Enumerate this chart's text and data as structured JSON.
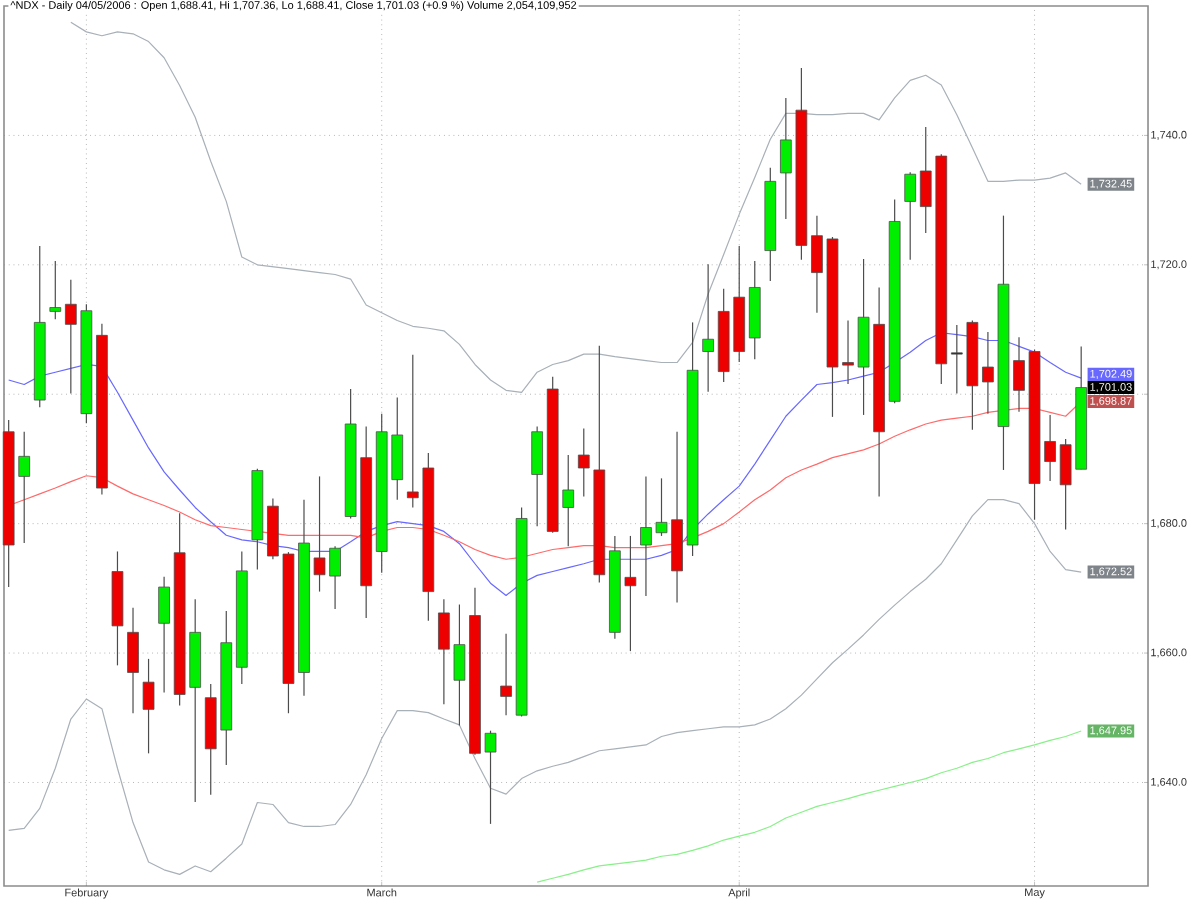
{
  "chart_data": {
    "type": "candlestick",
    "title": "^NDX - Daily 04/05/2006 : Open 1,688.41, Hi 1,707.36, Lo 1,688.41, Close 1,701.03 (+0.9 %) Volume 2,054,109,952",
    "categories": [
      null,
      null,
      null,
      null,
      null,
      "February",
      null,
      null,
      null,
      null,
      null,
      null,
      null,
      null,
      null,
      null,
      null,
      null,
      null,
      null,
      null,
      null,
      null,
      null,
      "March",
      null,
      null,
      null,
      null,
      null,
      null,
      null,
      null,
      null,
      null,
      null,
      null,
      null,
      null,
      null,
      null,
      null,
      null,
      null,
      null,
      null,
      null,
      "April",
      null,
      null,
      null,
      null,
      null,
      null,
      null,
      null,
      null,
      null,
      null,
      null,
      null,
      null,
      null,
      null,
      null,
      null,
      "May",
      null,
      null,
      null
    ],
    "ohlc": [
      [
        1694.2,
        1696.0,
        1670.2,
        1676.7
      ],
      [
        1687.3,
        1694.2,
        1677.0,
        1690.4
      ],
      [
        1699.1,
        1722.9,
        1698.0,
        1711.1
      ],
      [
        1712.8,
        1720.6,
        1711.6,
        1713.4
      ],
      [
        1713.9,
        1717.7,
        1700.1,
        1710.8
      ],
      [
        1697.0,
        1713.9,
        1695.5,
        1712.9
      ],
      [
        1709.1,
        1710.9,
        1684.5,
        1685.5
      ],
      [
        1672.6,
        1675.7,
        1658.1,
        1664.2
      ],
      [
        1663.2,
        1667.0,
        1650.7,
        1657.0
      ],
      [
        1655.5,
        1659.1,
        1644.5,
        1651.3
      ],
      [
        1664.6,
        1671.8,
        1653.9,
        1670.2
      ],
      [
        1675.5,
        1681.6,
        1651.9,
        1653.6
      ],
      [
        1654.7,
        1668.3,
        1637.0,
        1663.2
      ],
      [
        1653.1,
        1655.2,
        1638.1,
        1645.2
      ],
      [
        1648.1,
        1666.5,
        1642.7,
        1661.6
      ],
      [
        1657.8,
        1675.7,
        1655.2,
        1672.7
      ],
      [
        1677.5,
        1688.5,
        1672.9,
        1688.2
      ],
      [
        1682.7,
        1683.9,
        1674.5,
        1675.0
      ],
      [
        1675.3,
        1675.6,
        1650.7,
        1655.3
      ],
      [
        1657.0,
        1683.7,
        1653.4,
        1677.0
      ],
      [
        1674.7,
        1687.3,
        1669.5,
        1672.1
      ],
      [
        1671.9,
        1676.5,
        1666.8,
        1676.2
      ],
      [
        1681.1,
        1700.8,
        1680.8,
        1695.4
      ],
      [
        1690.2,
        1695.0,
        1665.4,
        1670.4
      ],
      [
        1675.7,
        1697.0,
        1672.4,
        1694.2
      ],
      [
        1686.8,
        1699.5,
        1683.7,
        1693.7
      ],
      [
        1684.9,
        1706.1,
        1682.5,
        1684.0
      ],
      [
        1688.6,
        1690.9,
        1665.0,
        1669.5
      ],
      [
        1666.2,
        1668.3,
        1652.1,
        1660.6
      ],
      [
        1655.8,
        1667.5,
        1648.8,
        1661.3
      ],
      [
        1665.8,
        1670.1,
        1644.3,
        1644.5
      ],
      [
        1644.7,
        1648.0,
        1633.6,
        1647.6
      ],
      [
        1654.9,
        1663.0,
        1650.4,
        1653.3
      ],
      [
        1650.4,
        1682.5,
        1650.2,
        1680.8
      ],
      [
        1687.6,
        1695.0,
        1679.6,
        1694.2
      ],
      [
        1700.8,
        1702.7,
        1678.6,
        1678.8
      ],
      [
        1682.5,
        1690.6,
        1676.5,
        1685.2
      ],
      [
        1690.6,
        1694.7,
        1684.2,
        1688.6
      ],
      [
        1688.3,
        1707.5,
        1670.9,
        1672.1
      ],
      [
        1663.2,
        1678.1,
        1662.2,
        1675.8
      ],
      [
        1671.7,
        1678.1,
        1660.3,
        1670.4
      ],
      [
        1676.7,
        1687.3,
        1668.8,
        1679.4
      ],
      [
        1678.6,
        1687.0,
        1678.1,
        1680.2
      ],
      [
        1680.6,
        1694.2,
        1667.8,
        1672.7
      ],
      [
        1676.7,
        1711.1,
        1675.0,
        1703.7
      ],
      [
        1706.6,
        1720.1,
        1700.4,
        1708.5
      ],
      [
        1712.8,
        1716.3,
        1701.9,
        1703.5
      ],
      [
        1715.0,
        1722.9,
        1705.0,
        1706.6
      ],
      [
        1708.7,
        1720.6,
        1705.4,
        1716.5
      ],
      [
        1722.2,
        1735.0,
        1717.5,
        1732.9
      ],
      [
        1734.2,
        1745.8,
        1727.1,
        1739.3
      ],
      [
        1743.9,
        1750.4,
        1720.8,
        1723.0
      ],
      [
        1724.5,
        1727.6,
        1712.6,
        1718.8
      ],
      [
        1724.0,
        1724.3,
        1696.5,
        1704.2
      ],
      [
        1704.9,
        1711.4,
        1701.6,
        1704.5
      ],
      [
        1704.2,
        1720.9,
        1696.8,
        1711.9
      ],
      [
        1710.8,
        1716.5,
        1684.2,
        1694.2
      ],
      [
        1698.9,
        1730.1,
        1698.6,
        1726.7
      ],
      [
        1729.8,
        1734.3,
        1720.8,
        1734.0
      ],
      [
        1734.5,
        1741.3,
        1724.9,
        1729.0
      ],
      [
        1736.8,
        1737.1,
        1701.6,
        1704.7
      ],
      [
        1706.4,
        1710.7,
        1700.1,
        1706.2
      ],
      [
        1711.1,
        1711.4,
        1694.5,
        1701.3
      ],
      [
        1704.2,
        1709.6,
        1697.0,
        1701.9
      ],
      [
        1695.0,
        1727.6,
        1688.3,
        1717.0
      ],
      [
        1705.2,
        1708.8,
        1697.3,
        1700.6
      ],
      [
        1706.6,
        1706.9,
        1680.6,
        1686.2
      ],
      [
        1692.7,
        1696.8,
        1686.6,
        1689.6
      ],
      [
        1692.2,
        1693.1,
        1679.1,
        1686.0
      ],
      [
        1688.41,
        1707.36,
        1688.41,
        1701.03
      ]
    ],
    "value_labels": [
      null,
      null,
      null,
      null,
      null,
      null,
      null,
      null,
      null,
      null,
      null,
      null,
      null,
      null,
      null,
      null,
      null,
      null,
      null,
      null,
      null,
      null,
      null,
      null,
      null,
      null,
      null,
      null,
      null,
      null,
      null,
      null,
      null,
      null,
      null,
      null,
      null,
      null,
      null,
      null,
      null,
      null,
      null,
      null,
      null,
      null,
      null,
      null,
      null,
      null,
      null,
      null,
      null,
      null,
      null,
      null,
      null,
      null,
      null,
      null,
      null,
      null,
      null,
      null,
      null,
      null,
      null,
      null,
      null,
      "1,701.03"
    ],
    "colors": [
      "#ee0000",
      "#00ee00",
      "#00ee00",
      "#00ee00",
      "#ee0000",
      "#00ee00",
      "#ee0000",
      "#ee0000",
      "#ee0000",
      "#ee0000",
      "#00ee00",
      "#ee0000",
      "#00ee00",
      "#ee0000",
      "#00ee00",
      "#00ee00",
      "#00ee00",
      "#ee0000",
      "#ee0000",
      "#00ee00",
      "#ee0000",
      "#00ee00",
      "#00ee00",
      "#ee0000",
      "#00ee00",
      "#00ee00",
      "#ee0000",
      "#ee0000",
      "#ee0000",
      "#00ee00",
      "#ee0000",
      "#00ee00",
      "#ee0000",
      "#00ee00",
      "#00ee00",
      "#ee0000",
      "#00ee00",
      "#ee0000",
      "#ee0000",
      "#00ee00",
      "#ee0000",
      "#00ee00",
      "#00ee00",
      "#ee0000",
      "#00ee00",
      "#00ee00",
      "#ee0000",
      "#ee0000",
      "#00ee00",
      "#00ee00",
      "#00ee00",
      "#ee0000",
      "#ee0000",
      "#ee0000",
      "#ee0000",
      "#00ee00",
      "#ee0000",
      "#00ee00",
      "#00ee00",
      "#ee0000",
      "#ee0000",
      "#202020",
      "#ee0000",
      "#ee0000",
      "#00ee00",
      "#ee0000",
      "#ee0000",
      "#ee0000",
      "#ee0000",
      "#00ee00"
    ],
    "series": [
      {
        "type": "line",
        "color": "#a8b0b8",
        "values": [
          null,
          null,
          null,
          null,
          1757.5,
          1756.0,
          1755.4,
          1756.0,
          1755.7,
          1754.5,
          1752.0,
          1747.7,
          1742.8,
          1736.0,
          1729.8,
          1721.2,
          1720.0,
          1719.7,
          1719.4,
          1719.1,
          1718.8,
          1718.5,
          1717.8,
          1713.8,
          1712.6,
          1711.4,
          1710.5,
          1710.2,
          1709.8,
          1707.7,
          1704.6,
          1702.2,
          1700.6,
          1700.3,
          1703.4,
          1704.6,
          1705.2,
          1706.2,
          1706.2,
          1705.8,
          1705.5,
          1705.2,
          1704.9,
          1704.9,
          1708.0,
          1715.5,
          1721.6,
          1727.8,
          1733.5,
          1739.4,
          1743.4,
          1743.4,
          1743.2,
          1743.2,
          1743.4,
          1743.4,
          1742.4,
          1745.8,
          1748.5,
          1749.3,
          1747.8,
          1743.2,
          1738.1,
          1732.9,
          1732.9,
          1733.1,
          1733.1,
          1733.4,
          1734.2,
          1732.45
        ],
        "value_labels": [
          null,
          null,
          null,
          null,
          null,
          null,
          null,
          null,
          null,
          null,
          null,
          null,
          null,
          null,
          null,
          null,
          null,
          null,
          null,
          null,
          null,
          null,
          null,
          null,
          null,
          null,
          null,
          null,
          null,
          null,
          null,
          null,
          null,
          null,
          null,
          null,
          null,
          null,
          null,
          null,
          null,
          null,
          null,
          null,
          null,
          null,
          null,
          null,
          null,
          null,
          null,
          null,
          null,
          null,
          null,
          null,
          null,
          null,
          null,
          null,
          null,
          null,
          null,
          null,
          null,
          null,
          null,
          null,
          null,
          "1,732.45"
        ]
      },
      {
        "type": "line",
        "color": "#a8b0b8",
        "values": [
          1632.6,
          1632.9,
          1636.0,
          1642.2,
          1649.8,
          1652.9,
          1651.4,
          1642.2,
          1633.8,
          1627.7,
          1626.5,
          1625.8,
          1627.1,
          1626.2,
          1628.3,
          1630.5,
          1636.9,
          1636.6,
          1633.8,
          1633.2,
          1633.2,
          1633.5,
          1636.6,
          1641.2,
          1646.8,
          1651.1,
          1651.1,
          1650.8,
          1649.8,
          1648.9,
          1643.7,
          1639.1,
          1638.2,
          1640.6,
          1641.8,
          1642.5,
          1643.1,
          1644.0,
          1644.9,
          1645.2,
          1645.5,
          1645.8,
          1647.1,
          1647.7,
          1648.0,
          1648.3,
          1648.6,
          1648.6,
          1648.9,
          1649.8,
          1651.4,
          1653.5,
          1656.0,
          1658.5,
          1660.6,
          1662.8,
          1665.2,
          1667.4,
          1669.5,
          1671.4,
          1673.8,
          1677.5,
          1681.2,
          1683.7,
          1683.7,
          1683.1,
          1680.0,
          1675.7,
          1672.9,
          1672.52
        ],
        "value_labels": [
          null,
          null,
          null,
          null,
          null,
          null,
          null,
          null,
          null,
          null,
          null,
          null,
          null,
          null,
          null,
          null,
          null,
          null,
          null,
          null,
          null,
          null,
          null,
          null,
          null,
          null,
          null,
          null,
          null,
          null,
          null,
          null,
          null,
          null,
          null,
          null,
          null,
          null,
          null,
          null,
          null,
          null,
          null,
          null,
          null,
          null,
          null,
          null,
          null,
          null,
          null,
          null,
          null,
          null,
          null,
          null,
          null,
          null,
          null,
          null,
          null,
          null,
          null,
          null,
          null,
          null,
          null,
          null,
          null,
          "1,672.52"
        ]
      },
      {
        "type": "line",
        "color": "#6868ff",
        "values": [
          1702.2,
          1701.5,
          1702.8,
          1703.4,
          1704.0,
          1704.6,
          1704.3,
          1700.3,
          1696.0,
          1691.7,
          1688.0,
          1685.2,
          1682.5,
          1680.3,
          1678.2,
          1677.5,
          1677.2,
          1676.6,
          1676.3,
          1675.7,
          1675.7,
          1675.7,
          1677.2,
          1678.8,
          1679.7,
          1680.3,
          1680.0,
          1679.7,
          1678.8,
          1676.9,
          1673.8,
          1670.8,
          1668.9,
          1670.8,
          1672.0,
          1672.6,
          1673.2,
          1673.8,
          1674.5,
          1674.5,
          1674.5,
          1674.5,
          1675.1,
          1676.0,
          1679.1,
          1681.5,
          1683.7,
          1685.8,
          1689.2,
          1692.9,
          1696.6,
          1699.1,
          1701.5,
          1701.8,
          1702.2,
          1702.8,
          1703.4,
          1704.9,
          1706.5,
          1708.3,
          1709.5,
          1709.2,
          1708.9,
          1708.3,
          1708.3,
          1707.4,
          1706.5,
          1704.9,
          1703.4,
          1702.49
        ],
        "value_labels": [
          null,
          null,
          null,
          null,
          null,
          null,
          null,
          null,
          null,
          null,
          null,
          null,
          null,
          null,
          null,
          null,
          null,
          null,
          null,
          null,
          null,
          null,
          null,
          null,
          null,
          null,
          null,
          null,
          null,
          null,
          null,
          null,
          null,
          null,
          null,
          null,
          null,
          null,
          null,
          null,
          null,
          null,
          null,
          null,
          null,
          null,
          null,
          null,
          null,
          null,
          null,
          null,
          null,
          null,
          null,
          null,
          null,
          null,
          null,
          null,
          null,
          null,
          null,
          null,
          null,
          null,
          null,
          null,
          null,
          "1,702.49"
        ]
      },
      {
        "type": "line",
        "color": "#ff6a6a",
        "values": [
          1682.8,
          1683.7,
          1684.6,
          1685.5,
          1686.5,
          1687.4,
          1687.1,
          1685.8,
          1684.6,
          1683.7,
          1682.8,
          1681.8,
          1680.6,
          1679.7,
          1679.4,
          1679.1,
          1678.8,
          1678.5,
          1678.2,
          1678.2,
          1678.2,
          1678.2,
          1678.2,
          1677.8,
          1678.8,
          1679.4,
          1679.4,
          1679.1,
          1678.2,
          1677.2,
          1676.0,
          1675.1,
          1674.5,
          1674.8,
          1675.4,
          1676.0,
          1676.3,
          1676.6,
          1676.6,
          1676.3,
          1676.3,
          1676.3,
          1676.6,
          1676.9,
          1677.8,
          1678.8,
          1680.0,
          1681.8,
          1683.7,
          1685.2,
          1687.1,
          1688.3,
          1689.2,
          1690.2,
          1690.8,
          1691.4,
          1692.3,
          1693.5,
          1694.5,
          1695.4,
          1696.0,
          1696.3,
          1696.6,
          1697.2,
          1697.5,
          1697.8,
          1697.8,
          1697.2,
          1696.6,
          1698.87
        ],
        "value_labels": [
          null,
          null,
          null,
          null,
          null,
          null,
          null,
          null,
          null,
          null,
          null,
          null,
          null,
          null,
          null,
          null,
          null,
          null,
          null,
          null,
          null,
          null,
          null,
          null,
          null,
          null,
          null,
          null,
          null,
          null,
          null,
          null,
          null,
          null,
          null,
          null,
          null,
          null,
          null,
          null,
          null,
          null,
          null,
          null,
          null,
          null,
          null,
          null,
          null,
          null,
          null,
          null,
          null,
          null,
          null,
          null,
          null,
          null,
          null,
          null,
          null,
          null,
          null,
          null,
          null,
          null,
          null,
          null,
          null,
          "1,698.87"
        ]
      },
      {
        "type": "line",
        "color": "#88f088",
        "values": [
          null,
          null,
          null,
          null,
          null,
          null,
          null,
          null,
          null,
          null,
          null,
          null,
          null,
          null,
          null,
          null,
          null,
          null,
          null,
          null,
          null,
          null,
          null,
          null,
          null,
          null,
          null,
          null,
          null,
          null,
          null,
          null,
          null,
          null,
          1624.6,
          1625.2,
          1625.8,
          1626.5,
          1627.1,
          1627.4,
          1627.7,
          1628.0,
          1628.6,
          1628.9,
          1629.5,
          1630.2,
          1631.1,
          1631.7,
          1632.3,
          1633.2,
          1634.5,
          1635.4,
          1636.3,
          1636.9,
          1637.5,
          1638.2,
          1638.8,
          1639.4,
          1640.0,
          1640.6,
          1641.5,
          1642.2,
          1643.1,
          1643.7,
          1644.6,
          1645.2,
          1645.8,
          1646.5,
          1647.1,
          1647.95
        ],
        "value_labels": [
          null,
          null,
          null,
          null,
          null,
          null,
          null,
          null,
          null,
          null,
          null,
          null,
          null,
          null,
          null,
          null,
          null,
          null,
          null,
          null,
          null,
          null,
          null,
          null,
          null,
          null,
          null,
          null,
          null,
          null,
          null,
          null,
          null,
          null,
          null,
          null,
          null,
          null,
          null,
          null,
          null,
          null,
          null,
          null,
          null,
          null,
          null,
          null,
          null,
          null,
          null,
          null,
          null,
          null,
          null,
          null,
          null,
          null,
          null,
          null,
          null,
          null,
          null,
          null,
          null,
          null,
          null,
          null,
          null,
          "1,647.95"
        ]
      }
    ],
    "ylim": [
      1624,
      1760
    ],
    "yticks": [
      {
        "value": 1640,
        "label": "1,640.0"
      },
      {
        "value": 1660,
        "label": "1,660.0"
      },
      {
        "value": 1680,
        "label": "1,680.0"
      },
      {
        "value": 1700,
        "label": null
      },
      {
        "value": 1720,
        "label": "1,720.0"
      },
      {
        "value": 1740,
        "label": "1,740.0"
      }
    ],
    "grid": true
  }
}
